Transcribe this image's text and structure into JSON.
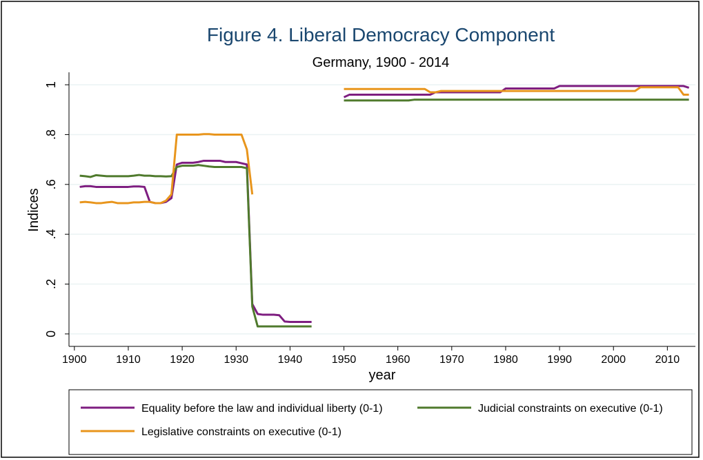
{
  "chart_data": {
    "type": "line",
    "title": "Figure 4. Liberal Democracy Component",
    "subtitle": "Germany, 1900 - 2014",
    "x_label": "year",
    "y_label": "Indices",
    "x": [
      1901,
      1902,
      1903,
      1904,
      1905,
      1906,
      1907,
      1908,
      1909,
      1910,
      1911,
      1912,
      1913,
      1914,
      1915,
      1916,
      1917,
      1918,
      1919,
      1920,
      1921,
      1922,
      1923,
      1924,
      1925,
      1926,
      1927,
      1928,
      1929,
      1930,
      1931,
      1932,
      1933,
      1934,
      1935,
      1936,
      1937,
      1938,
      1939,
      1940,
      1941,
      1942,
      1943,
      1944,
      1945,
      1946,
      1947,
      1948,
      1949,
      1950,
      1951,
      1952,
      1953,
      1954,
      1955,
      1956,
      1957,
      1958,
      1959,
      1960,
      1961,
      1962,
      1963,
      1964,
      1965,
      1966,
      1967,
      1968,
      1969,
      1970,
      1971,
      1972,
      1973,
      1974,
      1975,
      1976,
      1977,
      1978,
      1979,
      1980,
      1981,
      1982,
      1983,
      1984,
      1985,
      1986,
      1987,
      1988,
      1989,
      1990,
      1991,
      1992,
      1993,
      1994,
      1995,
      1996,
      1997,
      1998,
      1999,
      2000,
      2001,
      2002,
      2003,
      2004,
      2005,
      2006,
      2007,
      2008,
      2009,
      2010,
      2011,
      2012,
      2013,
      2014
    ],
    "series": [
      {
        "name": "Equality before the law and individual liberty (0-1)",
        "color": "#7e1e80",
        "values": [
          0.59,
          0.593,
          0.593,
          0.59,
          0.59,
          0.59,
          0.59,
          0.59,
          0.59,
          0.59,
          0.592,
          0.592,
          0.59,
          0.53,
          0.525,
          0.525,
          0.53,
          0.545,
          0.68,
          0.687,
          0.687,
          0.687,
          0.69,
          0.695,
          0.695,
          0.695,
          0.695,
          0.69,
          0.69,
          0.69,
          0.685,
          0.68,
          0.12,
          0.08,
          0.077,
          0.077,
          0.077,
          0.075,
          0.05,
          0.048,
          0.048,
          0.048,
          0.048,
          0.048,
          null,
          null,
          null,
          null,
          null,
          0.95,
          0.96,
          0.96,
          0.96,
          0.96,
          0.96,
          0.96,
          0.96,
          0.96,
          0.96,
          0.96,
          0.96,
          0.96,
          0.96,
          0.96,
          0.96,
          0.96,
          0.97,
          0.97,
          0.97,
          0.97,
          0.97,
          0.97,
          0.97,
          0.97,
          0.97,
          0.97,
          0.97,
          0.97,
          0.97,
          0.985,
          0.985,
          0.985,
          0.985,
          0.985,
          0.985,
          0.985,
          0.985,
          0.985,
          0.985,
          0.995,
          0.995,
          0.995,
          0.995,
          0.995,
          0.995,
          0.995,
          0.995,
          0.995,
          0.995,
          0.995,
          0.995,
          0.995,
          0.995,
          0.995,
          0.995,
          0.995,
          0.995,
          0.995,
          0.995,
          0.995,
          0.995,
          0.995,
          0.995,
          0.988
        ]
      },
      {
        "name": "Judicial constraints on executive (0-1)",
        "color": "#4f7a2c",
        "values": [
          0.635,
          0.633,
          0.63,
          0.637,
          0.635,
          0.633,
          0.633,
          0.633,
          0.633,
          0.633,
          0.635,
          0.638,
          0.635,
          0.635,
          0.633,
          0.633,
          0.632,
          0.633,
          0.67,
          0.675,
          0.675,
          0.675,
          0.678,
          0.675,
          0.672,
          0.67,
          0.67,
          0.67,
          0.67,
          0.67,
          0.67,
          0.665,
          0.11,
          0.03,
          0.03,
          0.03,
          0.03,
          0.03,
          0.03,
          0.03,
          0.03,
          0.03,
          0.03,
          0.03,
          null,
          null,
          null,
          null,
          null,
          0.937,
          0.937,
          0.937,
          0.937,
          0.937,
          0.937,
          0.937,
          0.937,
          0.937,
          0.937,
          0.937,
          0.937,
          0.937,
          0.94,
          0.94,
          0.94,
          0.94,
          0.94,
          0.94,
          0.94,
          0.94,
          0.94,
          0.94,
          0.94,
          0.94,
          0.94,
          0.94,
          0.94,
          0.94,
          0.94,
          0.94,
          0.94,
          0.94,
          0.94,
          0.94,
          0.94,
          0.94,
          0.94,
          0.94,
          0.94,
          0.94,
          0.94,
          0.94,
          0.94,
          0.94,
          0.94,
          0.94,
          0.94,
          0.94,
          0.94,
          0.94,
          0.94,
          0.94,
          0.94,
          0.94,
          0.94,
          0.94,
          0.94,
          0.94,
          0.94,
          0.94,
          0.94,
          0.94,
          0.94,
          0.94
        ]
      },
      {
        "name": "Legislative constraints on executive (0-1)",
        "color": "#e8951c",
        "values": [
          0.528,
          0.53,
          0.528,
          0.525,
          0.525,
          0.528,
          0.53,
          0.525,
          0.525,
          0.525,
          0.528,
          0.528,
          0.53,
          0.53,
          0.525,
          0.525,
          0.535,
          0.56,
          0.8,
          0.8,
          0.8,
          0.8,
          0.8,
          0.802,
          0.802,
          0.8,
          0.8,
          0.8,
          0.8,
          0.8,
          0.8,
          0.74,
          0.56,
          null,
          null,
          null,
          null,
          null,
          null,
          null,
          null,
          null,
          null,
          null,
          null,
          null,
          null,
          null,
          null,
          0.983,
          0.983,
          0.983,
          0.983,
          0.983,
          0.983,
          0.983,
          0.983,
          0.983,
          0.983,
          0.983,
          0.983,
          0.983,
          0.983,
          0.983,
          0.983,
          0.97,
          0.97,
          0.975,
          0.975,
          0.975,
          0.975,
          0.975,
          0.975,
          0.975,
          0.975,
          0.975,
          0.975,
          0.975,
          0.975,
          0.975,
          0.975,
          0.975,
          0.975,
          0.975,
          0.975,
          0.975,
          0.975,
          0.975,
          0.975,
          0.975,
          0.975,
          0.975,
          0.975,
          0.975,
          0.975,
          0.975,
          0.975,
          0.975,
          0.975,
          0.975,
          0.975,
          0.975,
          0.975,
          0.975,
          0.99,
          0.99,
          0.99,
          0.99,
          0.99,
          0.99,
          0.99,
          0.99,
          0.96,
          0.96
        ]
      }
    ],
    "xlim": [
      1899,
      2015.2
    ],
    "xticks": [
      1900,
      1910,
      1920,
      1930,
      1940,
      1950,
      1960,
      1970,
      1980,
      1990,
      2000,
      2010
    ],
    "ylim": [
      -0.05,
      1.05
    ],
    "yticks": [
      0,
      {
        "value": 0.2,
        "label": ".2"
      },
      {
        "value": 0.4,
        "label": ".4"
      },
      {
        "value": 0.6,
        "label": ".6"
      },
      {
        "value": 0.8,
        "label": ".8"
      },
      1
    ],
    "grid": true
  }
}
